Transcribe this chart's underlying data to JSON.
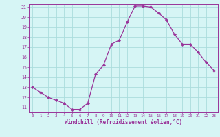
{
  "x": [
    0,
    1,
    2,
    3,
    4,
    5,
    6,
    7,
    8,
    9,
    10,
    11,
    12,
    13,
    14,
    15,
    16,
    17,
    18,
    19,
    20,
    21,
    22,
    23
  ],
  "y": [
    13.0,
    12.5,
    12.0,
    11.7,
    11.4,
    10.8,
    10.8,
    11.4,
    14.3,
    15.2,
    17.3,
    17.7,
    19.5,
    21.1,
    21.1,
    21.0,
    20.4,
    19.7,
    18.3,
    17.3,
    17.3,
    16.5,
    15.5,
    14.7
  ],
  "line_color": "#993399",
  "marker": "D",
  "marker_size": 2.2,
  "bg_color": "#d6f5f5",
  "grid_color": "#aadddd",
  "xlabel": "Windchill (Refroidissement éolien,°C)",
  "xlabel_color": "#993399",
  "tick_color": "#993399",
  "spine_color": "#993399",
  "ylim": [
    10.5,
    21.3
  ],
  "xlim": [
    -0.5,
    23.5
  ],
  "yticks": [
    11,
    12,
    13,
    14,
    15,
    16,
    17,
    18,
    19,
    20,
    21
  ],
  "xticks": [
    0,
    1,
    2,
    3,
    4,
    5,
    6,
    7,
    8,
    9,
    10,
    11,
    12,
    13,
    14,
    15,
    16,
    17,
    18,
    19,
    20,
    21,
    22,
    23
  ]
}
